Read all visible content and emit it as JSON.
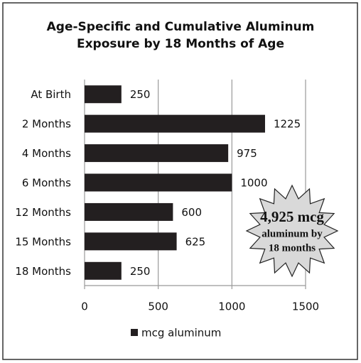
{
  "chart_data": {
    "type": "hbar",
    "title": "Age-Specific and Cumulative Aluminum Exposure by 18 Months of Age",
    "categories": [
      "At Birth",
      "2 Months",
      "4 Months",
      "6 Months",
      "12 Months",
      "15 Months",
      "18 Months"
    ],
    "series": [
      {
        "name": "mcg aluminum",
        "color": "#231f20",
        "values": [
          250,
          1225,
          975,
          1000,
          600,
          625,
          250
        ]
      }
    ],
    "xlim": [
      0,
      1500
    ],
    "xticks": [
      0,
      500,
      1000,
      1500
    ],
    "grid": true,
    "legend": "bottom",
    "annotation": [
      "4,925 mcg",
      "aluminum by",
      "18 months"
    ]
  }
}
